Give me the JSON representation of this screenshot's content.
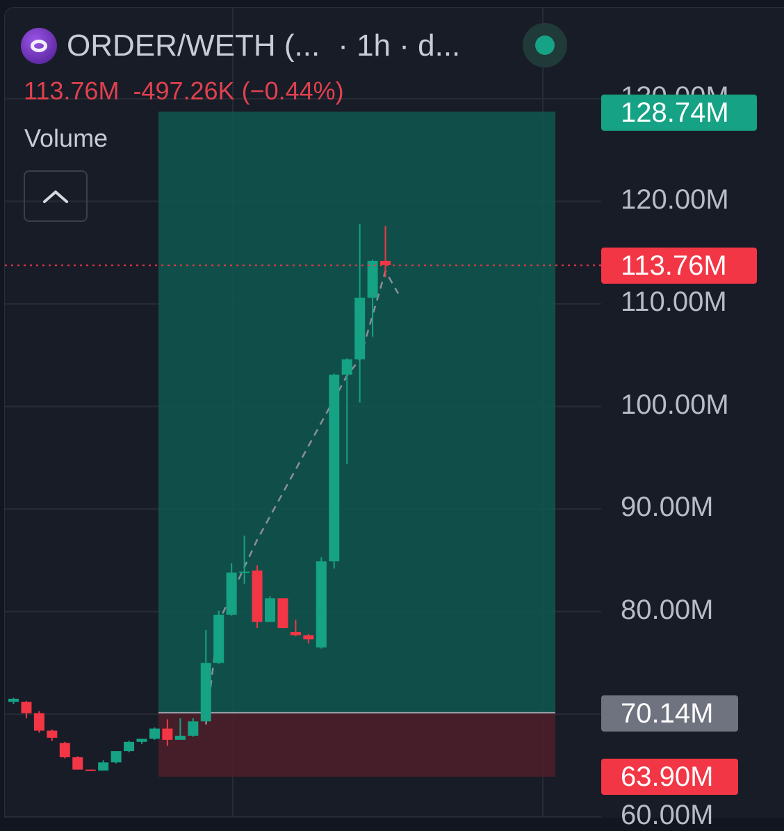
{
  "header": {
    "title": "ORDER/WETH (...",
    "subtitle": "· 1h · d...",
    "logo_icon": "order-token-logo",
    "status_color": "#16a284"
  },
  "legend": {
    "last_value": "113.76M",
    "change": "-497.26K",
    "change_pct": "(−0.44%)",
    "volume_label": "Volume",
    "collapse_icon": "chevron-up-icon"
  },
  "price_tags": {
    "target": "128.74M",
    "current": "113.76M",
    "entry": "70.14M",
    "stop": "63.90M"
  },
  "colors": {
    "up": "#16a284",
    "down": "#f23645",
    "profit_zone": "#0f5a50",
    "loss_zone": "#4a1f2a",
    "entry_tag": "#6f737f"
  },
  "chart_data": {
    "type": "candlestick",
    "ylim": [
      56,
      133
    ],
    "y_ticks": [
      {
        "value": 60,
        "label": "60.00M"
      },
      {
        "value": 80,
        "label": "80.00M"
      },
      {
        "value": 90,
        "label": "90.00M"
      },
      {
        "value": 100,
        "label": "100.00M"
      },
      {
        "value": 110,
        "label": "110.00M"
      },
      {
        "value": 120,
        "label": "120.00M"
      },
      {
        "value": 130,
        "label": "130.00M"
      }
    ],
    "candles": [
      {
        "o": 71.2,
        "h": 71.6,
        "l": 71.0,
        "c": 71.5
      },
      {
        "o": 71.2,
        "h": 71.3,
        "l": 69.6,
        "c": 70.1
      },
      {
        "o": 70.1,
        "h": 70.3,
        "l": 68.2,
        "c": 68.4
      },
      {
        "o": 68.4,
        "h": 68.5,
        "l": 67.4,
        "c": 67.7
      },
      {
        "o": 67.2,
        "h": 67.3,
        "l": 65.7,
        "c": 65.8
      },
      {
        "o": 65.8,
        "h": 65.9,
        "l": 64.6,
        "c": 64.6
      },
      {
        "o": 64.6,
        "h": 64.6,
        "l": 64.5,
        "c": 64.5
      },
      {
        "o": 64.5,
        "h": 65.5,
        "l": 64.5,
        "c": 65.3
      },
      {
        "o": 65.3,
        "h": 66.4,
        "l": 65.2,
        "c": 66.4
      },
      {
        "o": 66.4,
        "h": 67.4,
        "l": 66.3,
        "c": 67.3
      },
      {
        "o": 67.3,
        "h": 67.6,
        "l": 67.1,
        "c": 67.6
      },
      {
        "o": 67.6,
        "h": 68.7,
        "l": 67.5,
        "c": 68.6
      },
      {
        "o": 68.6,
        "h": 69.5,
        "l": 66.9,
        "c": 67.5
      },
      {
        "o": 67.5,
        "h": 69.6,
        "l": 67.5,
        "c": 67.9
      },
      {
        "o": 67.9,
        "h": 69.6,
        "l": 67.8,
        "c": 69.3
      },
      {
        "o": 69.3,
        "h": 78.2,
        "l": 69.3,
        "c": 75.0
      },
      {
        "o": 75.0,
        "h": 80.1,
        "l": 74.9,
        "c": 79.7
      },
      {
        "o": 79.7,
        "h": 84.7,
        "l": 79.6,
        "c": 83.8
      },
      {
        "o": 83.8,
        "h": 87.4,
        "l": 82.7,
        "c": 83.9
      },
      {
        "o": 84.0,
        "h": 84.5,
        "l": 78.4,
        "c": 79.0
      },
      {
        "o": 79.0,
        "h": 81.5,
        "l": 79.0,
        "c": 81.3
      },
      {
        "o": 81.3,
        "h": 81.3,
        "l": 78.4,
        "c": 78.4
      },
      {
        "o": 78.0,
        "h": 79.2,
        "l": 77.6,
        "c": 77.7
      },
      {
        "o": 77.7,
        "h": 77.8,
        "l": 76.9,
        "c": 77.3
      },
      {
        "o": 76.5,
        "h": 85.3,
        "l": 76.4,
        "c": 84.9
      },
      {
        "o": 84.9,
        "h": 103.2,
        "l": 84.2,
        "c": 103.1
      },
      {
        "o": 103.1,
        "h": 104.7,
        "l": 94.4,
        "c": 104.6
      },
      {
        "o": 104.6,
        "h": 117.8,
        "l": 100.4,
        "c": 110.6
      },
      {
        "o": 110.6,
        "h": 114.3,
        "l": 106.8,
        "c": 114.2
      },
      {
        "o": 114.2,
        "h": 117.6,
        "l": 112.6,
        "c": 113.8
      }
    ],
    "position": {
      "entry": 70.14,
      "target": 128.74,
      "stop": 63.9
    },
    "trend_path": [
      [
        15,
        69.0
      ],
      [
        16,
        79.0
      ],
      [
        19,
        87.0
      ],
      [
        26,
        103.0
      ],
      [
        27,
        104.6
      ],
      [
        29,
        113.2
      ],
      [
        30,
        111.0
      ]
    ],
    "current_price": 113.76
  }
}
